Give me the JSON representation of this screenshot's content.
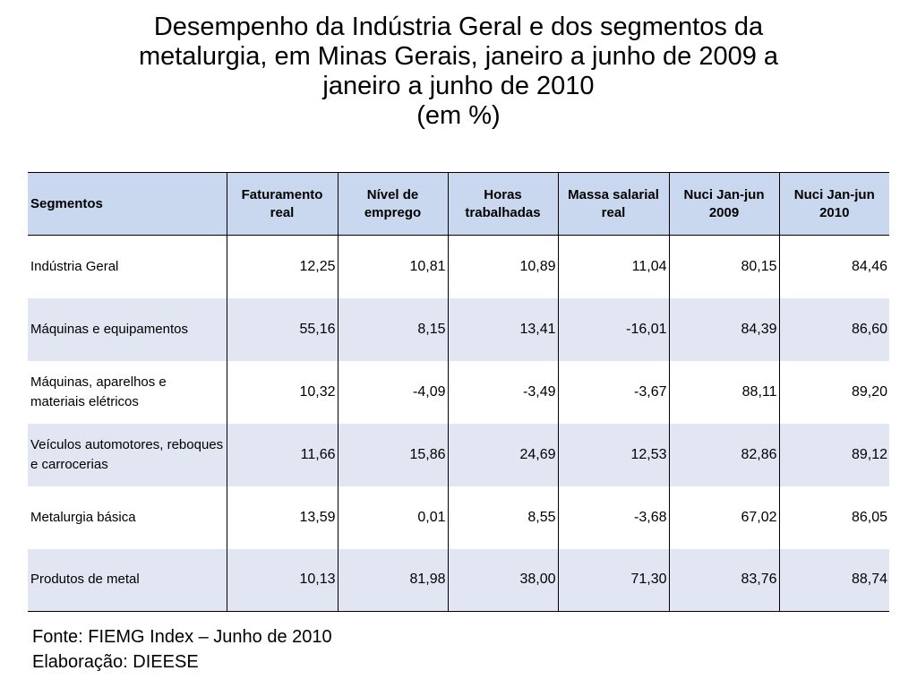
{
  "title": {
    "lines": [
      "Desempenho da Indústria Geral e dos segmentos da",
      "metalurgia, em Minas Gerais, janeiro a junho de 2009 a",
      "janeiro a junho de 2010",
      "(em %)"
    ]
  },
  "table": {
    "headers": [
      "Segmentos",
      "Faturamento real",
      "Nível de emprego",
      "Horas trabalhadas",
      "Massa salarial real",
      "Nuci Jan-jun 2009",
      "Nuci Jan-jun 2010"
    ],
    "rows": [
      {
        "segment": "Indústria Geral",
        "values": [
          "12,25",
          "10,81",
          "10,89",
          "11,04",
          "80,15",
          "84,46"
        ]
      },
      {
        "segment": "Máquinas e equipamentos",
        "values": [
          "55,16",
          "8,15",
          "13,41",
          "-16,01",
          "84,39",
          "86,60"
        ]
      },
      {
        "segment": "Máquinas, aparelhos e materiais elétricos",
        "values": [
          "10,32",
          "-4,09",
          "-3,49",
          "-3,67",
          "88,11",
          "89,20"
        ]
      },
      {
        "segment": "Veículos automotores, reboques e carrocerias",
        "values": [
          "11,66",
          "15,86",
          "24,69",
          "12,53",
          "82,86",
          "89,12"
        ]
      },
      {
        "segment": "Metalurgia básica",
        "values": [
          "13,59",
          "0,01",
          "8,55",
          "-3,68",
          "67,02",
          "86,05"
        ]
      },
      {
        "segment": "Produtos de metal",
        "values": [
          "10,13",
          "81,98",
          "38,00",
          "71,30",
          "83,76",
          "88,74"
        ]
      }
    ]
  },
  "source": {
    "fonte": "Fonte: FIEMG Index – Junho de 2010",
    "elaboracao": "Elaboração: DIEESE"
  },
  "colors": {
    "header_bg": "#c9d8ef",
    "alt_row_bg": "#e1e6f2"
  }
}
